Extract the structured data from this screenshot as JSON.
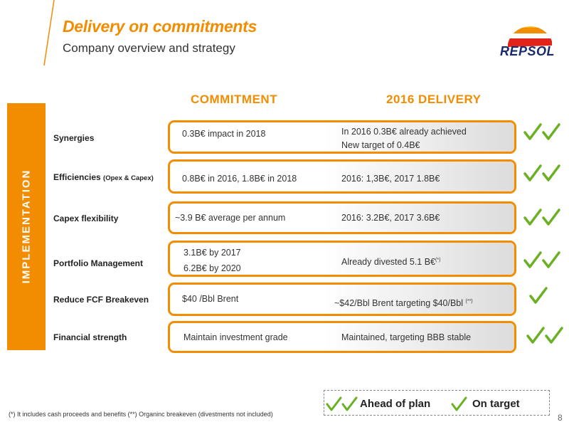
{
  "header": {
    "title": "Delivery on commitments",
    "subtitle": "Company overview and strategy"
  },
  "logo": {
    "text": "REPSOL"
  },
  "colors": {
    "accent": "#f28c00",
    "check": "#6ab023",
    "logo_navy": "#1a2a6c"
  },
  "columns": {
    "commitment": "COMMITMENT",
    "delivery": "2016 DELIVERY"
  },
  "side_label": "IMPLEMENTATION",
  "rows": [
    {
      "label": "Synergies",
      "label_small": "",
      "commitment": [
        "0.3B€ impact in 2018"
      ],
      "delivery": [
        "In 2016 0.3B€ already achieved",
        "New target of 0.4B€"
      ],
      "delivery_note": "",
      "status": "ahead",
      "checks": 2
    },
    {
      "label": "Efficiencies",
      "label_small": "(Opex & Capex)",
      "commitment": [
        "0.8B€ in 2016, 1.8B€ in 2018"
      ],
      "delivery": [
        "2016: 1,3B€, 2017 1.8B€"
      ],
      "delivery_note": "",
      "status": "ahead",
      "checks": 2
    },
    {
      "label": "Capex flexibility",
      "label_small": "",
      "commitment": [
        "~3.9 B€ average per annum"
      ],
      "delivery": [
        "2016: 3.2B€, 2017 3.6B€"
      ],
      "delivery_note": "",
      "status": "ahead",
      "checks": 2
    },
    {
      "label": "Portfolio Management",
      "label_small": "",
      "commitment": [
        "3.1B€ by 2017",
        "6.2B€ by 2020"
      ],
      "delivery": [
        "Already divested 5.1 B€"
      ],
      "delivery_note": "(*)",
      "status": "ahead",
      "checks": 2
    },
    {
      "label": "Reduce FCF Breakeven",
      "label_small": "",
      "commitment": [
        "$40 /Bbl Brent"
      ],
      "delivery": [
        "~$42/Bbl Brent targeting $40/Bbl"
      ],
      "delivery_note": "(**)",
      "status": "on-target",
      "checks": 1
    },
    {
      "label": "Financial strength",
      "label_small": "",
      "commitment": [
        "Maintain investment grade"
      ],
      "delivery": [
        "Maintained, targeting BBB stable"
      ],
      "delivery_note": "",
      "status": "ahead",
      "checks": 2
    }
  ],
  "legend": {
    "ahead": "Ahead of plan",
    "on_target": "On target"
  },
  "footnote": "(*) It includes cash proceeds and benefits (**) Organinc breakeven (divestments not included)",
  "page_number": "8"
}
